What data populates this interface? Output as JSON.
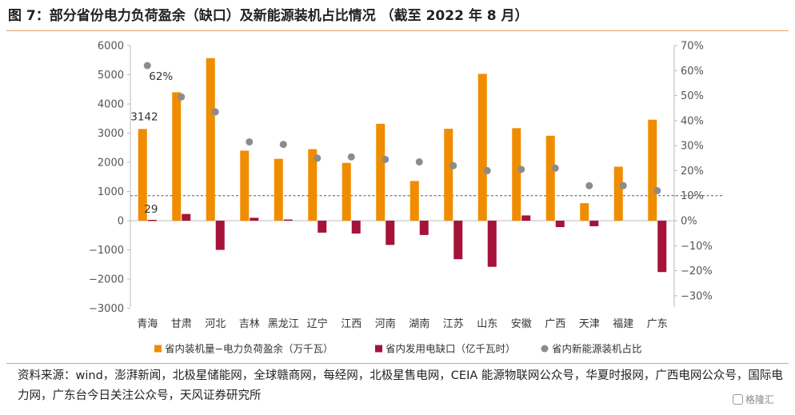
{
  "title": "图 7：部分省份电力负荷盈余（缺口）及新能源装机占比情况 （截至 2022 年 8 月）",
  "source": "资料来源：wind，澎湃新闻，北极星储能网，全球赣商网，每经网，北极星售电网，CEIA 能源物联网公众号，华夏时报网，广西电网公众号，国际电力网，广东台今日关注公众号，天风证券研究所",
  "watermark": "格隆汇",
  "chart_data": {
    "type": "bar",
    "categories": [
      "青海",
      "甘肃",
      "河北",
      "吉林",
      "黑龙江",
      "辽宁",
      "江西",
      "河南",
      "湖南",
      "江苏",
      "山东",
      "安徽",
      "广西",
      "天津",
      "福建",
      "广东"
    ],
    "series": [
      {
        "name": "省内装机量−电力负荷盈余（万千瓦）",
        "kind": "bar",
        "axis": "left",
        "color": "#f08c00",
        "values": [
          3142,
          4400,
          5570,
          2400,
          2120,
          2450,
          1980,
          3320,
          1360,
          3150,
          5030,
          3170,
          2910,
          600,
          1850,
          3460
        ]
      },
      {
        "name": "省内发用电缺口（亿千瓦时）",
        "kind": "bar",
        "axis": "left",
        "color": "#a6123a",
        "values": [
          29,
          230,
          -1000,
          100,
          40,
          -410,
          -440,
          -830,
          -490,
          -1320,
          -1580,
          180,
          -220,
          -190,
          0,
          -1760
        ]
      },
      {
        "name": "省内新能源装机占比",
        "kind": "scatter",
        "axis": "right",
        "color": "#8c8c8c",
        "values": [
          0.62,
          0.495,
          0.435,
          0.315,
          0.305,
          0.25,
          0.255,
          0.245,
          0.235,
          0.22,
          0.2,
          0.205,
          0.21,
          0.14,
          0.14,
          0.12
        ]
      }
    ],
    "y_left": {
      "min": -3000,
      "max": 6000,
      "ticks": [
        6000,
        5000,
        4000,
        3000,
        2000,
        1000,
        0,
        -1000,
        -2000,
        -3000
      ],
      "tick_labels": [
        "6000",
        "5000",
        "4000",
        "3000",
        "2000",
        "1000",
        "0",
        "−1000",
        "−2000",
        "−3000"
      ]
    },
    "y_right": {
      "min": -0.3,
      "max": 0.7,
      "ticks": [
        0.7,
        0.6,
        0.5,
        0.4,
        0.3,
        0.2,
        0.1,
        0,
        -0.1,
        -0.2,
        -0.3
      ],
      "tick_labels": [
        "70%",
        "60%",
        "50%",
        "40%",
        "30%",
        "20%",
        "10%",
        "0%",
        "−10%",
        "−20%",
        "−30%"
      ]
    },
    "reference_line": {
      "axis": "right",
      "value": 0.1,
      "style": "dashed"
    },
    "annotations": [
      {
        "series": 2,
        "index": 0,
        "text": "62%"
      },
      {
        "series": 0,
        "index": 0,
        "text": "3142"
      },
      {
        "series": 1,
        "index": 0,
        "text": "29"
      }
    ],
    "legend_position": "bottom",
    "grid": false
  }
}
